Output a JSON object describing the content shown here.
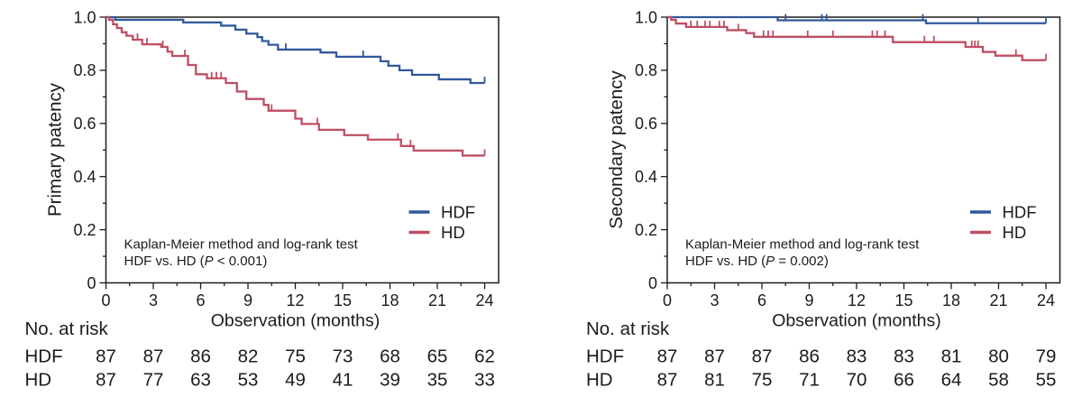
{
  "figure": {
    "background": "#ffffff",
    "colors": {
      "hdf": "#30599B",
      "hd": "#BE4F63",
      "axis": "#1c1c1c",
      "text": "#1c1c1c"
    }
  },
  "chart_data": [
    {
      "type": "line",
      "km_step": true,
      "id": "primary-patency",
      "ylabel": "Primary patency",
      "xlabel": "Observation (months)",
      "xlim": [
        0,
        24
      ],
      "ylim": [
        0,
        1.0
      ],
      "xticks": [
        0,
        3,
        6,
        9,
        12,
        15,
        18,
        21,
        24
      ],
      "yticks": [
        0,
        0.2,
        0.4,
        0.6,
        0.8,
        1.0
      ],
      "ytick_labels": [
        "0",
        "0.2",
        "0.4",
        "0.6",
        "0.8",
        "1.0"
      ],
      "x_minor_step": 1.5,
      "y_minor_step": 0.1,
      "grid": false,
      "legend_position": "inside right",
      "legend": [
        {
          "label": "HDF",
          "color_key": "hdf"
        },
        {
          "label": "HD",
          "color_key": "hd"
        }
      ],
      "annotation": {
        "line1": "Kaplan-Meier method and log-rank test",
        "line2_parts": [
          "HDF vs. HD (",
          "P",
          " < 0.001)"
        ]
      },
      "series": [
        {
          "name": "HDF",
          "color_key": "hdf",
          "steps": [
            [
              0,
              1.0
            ],
            [
              0.6,
              0.99
            ],
            [
              4.9,
              0.98
            ],
            [
              7.3,
              0.968
            ],
            [
              8.2,
              0.953
            ],
            [
              8.9,
              0.938
            ],
            [
              9.6,
              0.925
            ],
            [
              9.9,
              0.91
            ],
            [
              10.3,
              0.896
            ],
            [
              10.9,
              0.878
            ],
            [
              13.6,
              0.867
            ],
            [
              14.6,
              0.851
            ],
            [
              17.4,
              0.834
            ],
            [
              17.9,
              0.817
            ],
            [
              18.6,
              0.8
            ],
            [
              19.4,
              0.783
            ],
            [
              21.1,
              0.766
            ],
            [
              23.1,
              0.752
            ],
            [
              24,
              0.752
            ]
          ],
          "censor_ticks": [
            11.4,
            16.3,
            24
          ]
        },
        {
          "name": "HD",
          "color_key": "hd",
          "steps": [
            [
              0,
              1.0
            ],
            [
              0.2,
              0.99
            ],
            [
              0.45,
              0.973
            ],
            [
              0.7,
              0.959
            ],
            [
              1.0,
              0.943
            ],
            [
              1.3,
              0.93
            ],
            [
              1.7,
              0.915
            ],
            [
              2.3,
              0.898
            ],
            [
              3.5,
              0.888
            ],
            [
              3.9,
              0.87
            ],
            [
              4.2,
              0.854
            ],
            [
              5.2,
              0.82
            ],
            [
              5.7,
              0.785
            ],
            [
              6.4,
              0.77
            ],
            [
              7.6,
              0.752
            ],
            [
              8.3,
              0.72
            ],
            [
              8.9,
              0.692
            ],
            [
              10.0,
              0.67
            ],
            [
              10.3,
              0.648
            ],
            [
              12.0,
              0.618
            ],
            [
              12.4,
              0.598
            ],
            [
              13.5,
              0.576
            ],
            [
              15.1,
              0.556
            ],
            [
              16.6,
              0.539
            ],
            [
              18.7,
              0.515
            ],
            [
              19.5,
              0.498
            ],
            [
              22.6,
              0.479
            ],
            [
              24,
              0.479
            ]
          ],
          "censor_ticks": [
            2.0,
            2.6,
            3.6,
            5.0,
            6.7,
            7.0,
            7.3,
            10.5,
            13.4,
            18.5,
            19.3,
            24
          ]
        }
      ],
      "at_risk": {
        "title": "No. at risk",
        "months": [
          0,
          3,
          6,
          9,
          12,
          15,
          18,
          21,
          24
        ],
        "rows": [
          {
            "label": "HDF",
            "values": [
              87,
              87,
              86,
              82,
              75,
              73,
              68,
              65,
              62
            ]
          },
          {
            "label": "HD",
            "values": [
              87,
              77,
              63,
              53,
              49,
              41,
              39,
              35,
              33
            ]
          }
        ]
      }
    },
    {
      "type": "line",
      "km_step": true,
      "id": "secondary-patency",
      "ylabel": "Secondary patency",
      "xlabel": "Observation (months)",
      "xlim": [
        0,
        24
      ],
      "ylim": [
        0,
        1.0
      ],
      "xticks": [
        0,
        3,
        6,
        9,
        12,
        15,
        18,
        21,
        24
      ],
      "yticks": [
        0,
        0.2,
        0.4,
        0.6,
        0.8,
        1.0
      ],
      "ytick_labels": [
        "0",
        "0.2",
        "0.4",
        "0.6",
        "0.8",
        "1.0"
      ],
      "x_minor_step": 1.5,
      "y_minor_step": 0.1,
      "grid": false,
      "legend_position": "inside right",
      "legend": [
        {
          "label": "HDF",
          "color_key": "hdf"
        },
        {
          "label": "HD",
          "color_key": "hd"
        }
      ],
      "annotation": {
        "line1": "Kaplan-Meier method and log-rank test",
        "line2_parts": [
          "HDF vs. HD (",
          "P",
          " = 0.002)"
        ]
      },
      "series": [
        {
          "name": "HDF",
          "color_key": "hdf",
          "steps": [
            [
              0,
              1.0
            ],
            [
              7.0,
              0.988
            ],
            [
              16.4,
              0.977
            ],
            [
              24,
              0.977
            ]
          ],
          "censor_ticks": [
            7.5,
            9.8,
            10.1,
            16.2,
            19.7,
            24
          ]
        },
        {
          "name": "HD",
          "color_key": "hd",
          "steps": [
            [
              0,
              1.0
            ],
            [
              0.25,
              0.99
            ],
            [
              0.55,
              0.976
            ],
            [
              1.2,
              0.963
            ],
            [
              3.8,
              0.951
            ],
            [
              5.0,
              0.94
            ],
            [
              5.5,
              0.926
            ],
            [
              14.3,
              0.906
            ],
            [
              18.9,
              0.888
            ],
            [
              20.0,
              0.869
            ],
            [
              20.8,
              0.855
            ],
            [
              22.5,
              0.838
            ],
            [
              24,
              0.838
            ]
          ],
          "censor_ticks": [
            1.5,
            1.9,
            2.4,
            2.7,
            3.3,
            3.6,
            4.5,
            6.1,
            6.4,
            6.7,
            8.9,
            10.5,
            13.0,
            13.3,
            13.8,
            16.3,
            16.9,
            19.3,
            19.5,
            19.7,
            22.1,
            24
          ]
        }
      ],
      "at_risk": {
        "title": "No. at risk",
        "months": [
          0,
          3,
          6,
          9,
          12,
          15,
          18,
          21,
          24
        ],
        "rows": [
          {
            "label": "HDF",
            "values": [
              87,
              87,
              87,
              86,
              83,
              83,
              81,
              80,
              79
            ]
          },
          {
            "label": "HD",
            "values": [
              87,
              81,
              75,
              71,
              70,
              66,
              64,
              58,
              55
            ]
          }
        ]
      }
    }
  ]
}
